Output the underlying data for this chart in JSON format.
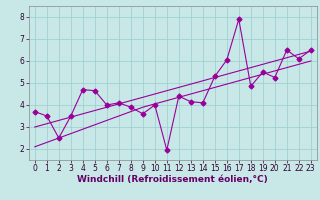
{
  "x": [
    0,
    1,
    2,
    3,
    4,
    5,
    6,
    7,
    8,
    9,
    10,
    11,
    12,
    13,
    14,
    15,
    16,
    17,
    18,
    19,
    20,
    21,
    22,
    23
  ],
  "y_data": [
    3.7,
    3.5,
    2.5,
    3.5,
    4.7,
    4.65,
    4.0,
    4.1,
    3.9,
    3.6,
    4.0,
    1.95,
    4.4,
    4.15,
    4.1,
    5.3,
    6.05,
    7.9,
    4.85,
    5.5,
    5.25,
    6.5,
    6.1,
    6.5
  ],
  "y_trend1": [
    2.1,
    2.3,
    2.5,
    2.7,
    2.9,
    3.1,
    3.3,
    3.5,
    3.7,
    3.9,
    4.05,
    4.2,
    4.35,
    4.5,
    4.65,
    4.8,
    4.95,
    5.1,
    5.25,
    5.4,
    5.55,
    5.7,
    5.85,
    6.0
  ],
  "y_trend2": [
    3.0,
    3.15,
    3.3,
    3.45,
    3.6,
    3.75,
    3.9,
    4.05,
    4.2,
    4.35,
    4.5,
    4.65,
    4.8,
    4.95,
    5.1,
    5.25,
    5.4,
    5.55,
    5.7,
    5.85,
    6.0,
    6.15,
    6.3,
    6.45
  ],
  "line_color": "#990099",
  "bg_color": "#c8e8e8",
  "grid_color": "#99cccc",
  "xlabel": "Windchill (Refroidissement éolien,°C)",
  "xlim": [
    -0.5,
    23.5
  ],
  "ylim": [
    1.5,
    8.5
  ],
  "yticks": [
    2,
    3,
    4,
    5,
    6,
    7,
    8
  ],
  "xticks": [
    0,
    1,
    2,
    3,
    4,
    5,
    6,
    7,
    8,
    9,
    10,
    11,
    12,
    13,
    14,
    15,
    16,
    17,
    18,
    19,
    20,
    21,
    22,
    23
  ],
  "marker": "D",
  "markersize": 2.5,
  "linewidth": 0.8,
  "xlabel_fontsize": 6.5,
  "tick_fontsize": 5.5
}
